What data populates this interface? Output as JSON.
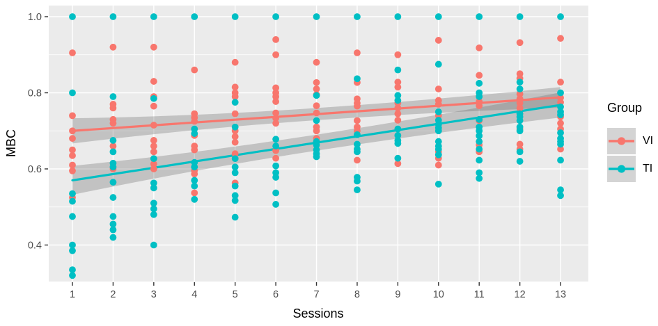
{
  "chart_data": {
    "type": "scatter",
    "title": "",
    "xlabel": "Sessions",
    "ylabel": "MBC",
    "x_ticks": [
      1,
      2,
      3,
      4,
      5,
      6,
      7,
      8,
      9,
      10,
      11,
      12,
      13
    ],
    "y_ticks": [
      0.4,
      0.6,
      0.8,
      1.0
    ],
    "y_minor_ticks": [
      0.5,
      0.7,
      0.9
    ],
    "xlim": [
      0.42,
      13.68
    ],
    "ylim": [
      0.3,
      1.03
    ],
    "grid": "on",
    "colors": {
      "panel_background": "#EBEBEB",
      "gridline": "#FFFFFF",
      "ci_band": "rgba(103,103,103,0.31)",
      "tick_text": "#4D4D4D",
      "legend_key_background": "#D4D4D4"
    },
    "legend": {
      "title": "Group",
      "position": "right",
      "entries": [
        {
          "label": "VI",
          "color": "#F8766D"
        },
        {
          "label": "TI",
          "color": "#00BFC4"
        }
      ]
    },
    "series": [
      {
        "name": "VI",
        "color": "#F8766D",
        "points": [
          [
            1,
            0.905
          ],
          [
            1,
            0.74
          ],
          [
            1,
            0.7
          ],
          [
            1,
            0.68
          ],
          [
            1,
            0.65
          ],
          [
            1,
            0.635
          ],
          [
            1,
            0.61
          ],
          [
            1,
            0.595
          ],
          [
            1,
            0.525
          ],
          [
            2,
            0.92
          ],
          [
            2,
            0.77
          ],
          [
            2,
            0.76
          ],
          [
            2,
            0.73
          ],
          [
            2,
            0.72
          ],
          [
            2,
            0.66
          ],
          [
            2,
            0.6
          ],
          [
            3,
            0.92
          ],
          [
            3,
            0.83
          ],
          [
            3,
            0.79
          ],
          [
            3,
            0.765
          ],
          [
            3,
            0.715
          ],
          [
            3,
            0.675
          ],
          [
            3,
            0.66
          ],
          [
            3,
            0.645
          ],
          [
            3,
            0.627
          ],
          [
            3,
            0.613
          ],
          [
            3,
            0.6
          ],
          [
            4,
            0.86
          ],
          [
            4,
            0.745
          ],
          [
            4,
            0.735
          ],
          [
            4,
            0.725
          ],
          [
            4,
            0.688
          ],
          [
            4,
            0.66
          ],
          [
            4,
            0.65
          ],
          [
            4,
            0.596
          ],
          [
            4,
            0.587
          ],
          [
            4,
            0.537
          ],
          [
            5,
            0.88
          ],
          [
            5,
            0.815
          ],
          [
            5,
            0.8
          ],
          [
            5,
            0.79
          ],
          [
            5,
            0.745
          ],
          [
            5,
            0.7
          ],
          [
            5,
            0.685
          ],
          [
            5,
            0.67
          ],
          [
            5,
            0.64
          ],
          [
            5,
            0.563
          ],
          [
            6,
            0.94
          ],
          [
            6,
            0.9
          ],
          [
            6,
            0.813
          ],
          [
            6,
            0.8
          ],
          [
            6,
            0.79
          ],
          [
            6,
            0.777
          ],
          [
            6,
            0.747
          ],
          [
            6,
            0.733
          ],
          [
            6,
            0.72
          ],
          [
            6,
            0.648
          ],
          [
            6,
            0.628
          ],
          [
            7,
            0.88
          ],
          [
            7,
            0.827
          ],
          [
            7,
            0.81
          ],
          [
            7,
            0.795
          ],
          [
            7,
            0.766
          ],
          [
            7,
            0.747
          ],
          [
            7,
            0.71
          ],
          [
            7,
            0.7
          ],
          [
            7,
            0.68
          ],
          [
            8,
            0.905
          ],
          [
            8,
            0.827
          ],
          [
            8,
            0.784
          ],
          [
            8,
            0.773
          ],
          [
            8,
            0.765
          ],
          [
            8,
            0.727
          ],
          [
            8,
            0.71
          ],
          [
            8,
            0.7
          ],
          [
            8,
            0.623
          ],
          [
            9,
            0.9
          ],
          [
            9,
            0.828
          ],
          [
            9,
            0.815
          ],
          [
            9,
            0.773
          ],
          [
            9,
            0.76
          ],
          [
            9,
            0.745
          ],
          [
            9,
            0.728
          ],
          [
            9,
            0.614
          ],
          [
            10,
            0.938
          ],
          [
            10,
            0.81
          ],
          [
            10,
            0.78
          ],
          [
            10,
            0.77
          ],
          [
            10,
            0.74
          ],
          [
            10,
            0.645
          ],
          [
            10,
            0.628
          ],
          [
            10,
            0.61
          ],
          [
            11,
            0.918
          ],
          [
            11,
            0.846
          ],
          [
            11,
            0.777
          ],
          [
            11,
            0.766
          ],
          [
            11,
            0.727
          ],
          [
            11,
            0.663
          ],
          [
            11,
            0.645
          ],
          [
            12,
            0.932
          ],
          [
            12,
            0.85
          ],
          [
            12,
            0.838
          ],
          [
            12,
            0.797
          ],
          [
            12,
            0.784
          ],
          [
            12,
            0.773
          ],
          [
            12,
            0.76
          ],
          [
            12,
            0.705
          ],
          [
            12,
            0.665
          ],
          [
            12,
            0.652
          ],
          [
            13,
            0.943
          ],
          [
            13,
            0.828
          ],
          [
            13,
            0.787
          ],
          [
            13,
            0.775
          ],
          [
            13,
            0.737
          ],
          [
            13,
            0.72
          ],
          [
            13,
            0.705
          ],
          [
            13,
            0.652
          ]
        ]
      },
      {
        "name": "TI",
        "color": "#00BFC4",
        "points": [
          [
            1,
            1.0
          ],
          [
            1,
            0.8
          ],
          [
            1,
            0.535
          ],
          [
            1,
            0.515
          ],
          [
            1,
            0.475
          ],
          [
            1,
            0.4
          ],
          [
            1,
            0.385
          ],
          [
            1,
            0.335
          ],
          [
            1,
            0.32
          ],
          [
            2,
            1.0
          ],
          [
            2,
            0.79
          ],
          [
            2,
            0.675
          ],
          [
            2,
            0.645
          ],
          [
            2,
            0.615
          ],
          [
            2,
            0.605
          ],
          [
            2,
            0.565
          ],
          [
            2,
            0.525
          ],
          [
            2,
            0.475
          ],
          [
            2,
            0.455
          ],
          [
            2,
            0.44
          ],
          [
            2,
            0.42
          ],
          [
            3,
            1.0
          ],
          [
            3,
            0.785
          ],
          [
            3,
            0.627
          ],
          [
            3,
            0.563
          ],
          [
            3,
            0.55
          ],
          [
            3,
            0.51
          ],
          [
            3,
            0.495
          ],
          [
            3,
            0.48
          ],
          [
            3,
            0.4
          ],
          [
            4,
            1.0
          ],
          [
            4,
            0.705
          ],
          [
            4,
            0.693
          ],
          [
            4,
            0.617
          ],
          [
            4,
            0.605
          ],
          [
            4,
            0.57
          ],
          [
            4,
            0.555
          ],
          [
            4,
            0.52
          ],
          [
            5,
            1.0
          ],
          [
            5,
            0.775
          ],
          [
            5,
            0.71
          ],
          [
            5,
            0.627
          ],
          [
            5,
            0.605
          ],
          [
            5,
            0.59
          ],
          [
            5,
            0.555
          ],
          [
            5,
            0.53
          ],
          [
            5,
            0.517
          ],
          [
            5,
            0.473
          ],
          [
            6,
            1.0
          ],
          [
            6,
            0.678
          ],
          [
            6,
            0.66
          ],
          [
            6,
            0.608
          ],
          [
            6,
            0.59
          ],
          [
            6,
            0.578
          ],
          [
            6,
            0.537
          ],
          [
            6,
            0.507
          ],
          [
            7,
            1.0
          ],
          [
            7,
            0.793
          ],
          [
            7,
            0.727
          ],
          [
            7,
            0.672
          ],
          [
            7,
            0.663
          ],
          [
            7,
            0.65
          ],
          [
            7,
            0.64
          ],
          [
            7,
            0.632
          ],
          [
            8,
            1.0
          ],
          [
            8,
            0.837
          ],
          [
            8,
            0.69
          ],
          [
            8,
            0.665
          ],
          [
            8,
            0.652
          ],
          [
            8,
            0.645
          ],
          [
            8,
            0.578
          ],
          [
            8,
            0.568
          ],
          [
            8,
            0.545
          ],
          [
            9,
            1.0
          ],
          [
            9,
            0.86
          ],
          [
            9,
            0.793
          ],
          [
            9,
            0.78
          ],
          [
            9,
            0.705
          ],
          [
            9,
            0.688
          ],
          [
            9,
            0.675
          ],
          [
            9,
            0.667
          ],
          [
            9,
            0.628
          ],
          [
            10,
            1.0
          ],
          [
            10,
            0.875
          ],
          [
            10,
            0.75
          ],
          [
            10,
            0.728
          ],
          [
            10,
            0.717
          ],
          [
            10,
            0.708
          ],
          [
            10,
            0.7
          ],
          [
            10,
            0.672
          ],
          [
            10,
            0.66
          ],
          [
            10,
            0.652
          ],
          [
            10,
            0.637
          ],
          [
            10,
            0.56
          ],
          [
            11,
            1.0
          ],
          [
            11,
            0.825
          ],
          [
            11,
            0.8
          ],
          [
            11,
            0.79
          ],
          [
            11,
            0.73
          ],
          [
            11,
            0.71
          ],
          [
            11,
            0.7
          ],
          [
            11,
            0.687
          ],
          [
            11,
            0.672
          ],
          [
            11,
            0.652
          ],
          [
            11,
            0.623
          ],
          [
            11,
            0.59
          ],
          [
            11,
            0.575
          ],
          [
            12,
            1.0
          ],
          [
            12,
            0.828
          ],
          [
            12,
            0.81
          ],
          [
            12,
            0.745
          ],
          [
            12,
            0.737
          ],
          [
            12,
            0.727
          ],
          [
            12,
            0.71
          ],
          [
            12,
            0.7
          ],
          [
            12,
            0.645
          ],
          [
            12,
            0.62
          ],
          [
            13,
            1.0
          ],
          [
            13,
            0.8
          ],
          [
            13,
            0.763
          ],
          [
            13,
            0.75
          ],
          [
            13,
            0.742
          ],
          [
            13,
            0.695
          ],
          [
            13,
            0.68
          ],
          [
            13,
            0.672
          ],
          [
            13,
            0.665
          ],
          [
            13,
            0.623
          ],
          [
            13,
            0.545
          ],
          [
            13,
            0.53
          ]
        ]
      }
    ],
    "regression": [
      {
        "name": "VI",
        "color": "#F8766D",
        "x_start": 1,
        "x_end": 13,
        "y_start": 0.7,
        "y_end": 0.788,
        "ci_halfwidth": [
          0.033,
          0.016,
          0.027
        ]
      },
      {
        "name": "TI",
        "color": "#00BFC4",
        "x_start": 1,
        "x_end": 13,
        "y_start": 0.57,
        "y_end": 0.768,
        "ci_halfwidth": [
          0.038,
          0.021,
          0.033
        ]
      }
    ]
  }
}
